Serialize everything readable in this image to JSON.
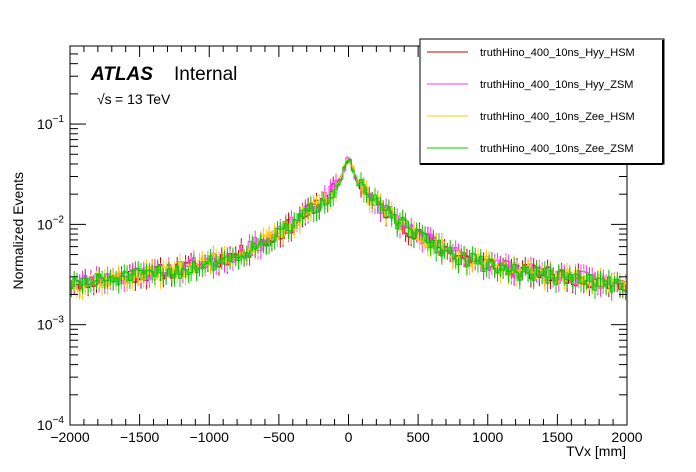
{
  "chart_data": {
    "type": "line",
    "style": "step-histogram-with-error-bars",
    "title": "",
    "experiment_label": "ATLAS",
    "status_label": "Internal",
    "energy_label": "= 13 TeV",
    "energy_sqrt_symbol": "√s",
    "xlabel": "TVx [mm]",
    "ylabel": "Normalized Events",
    "xlim": [
      -2000,
      2000
    ],
    "ylim": [
      0.0001,
      0.6
    ],
    "yscale": "log",
    "x_ticks": [
      -2000,
      -1500,
      -1000,
      -500,
      0,
      500,
      1000,
      1500,
      2000
    ],
    "x_tick_labels": [
      "−2000",
      "−1500",
      "−1000",
      "−500",
      "0",
      "500",
      "1000",
      "1500",
      "2000"
    ],
    "y_ticks": [
      {
        "value": 0.0001,
        "base": "10",
        "exp": "−4"
      },
      {
        "value": 0.001,
        "base": "10",
        "exp": "−3"
      },
      {
        "value": 0.01,
        "base": "10",
        "exp": "−2"
      },
      {
        "value": 0.1,
        "base": "10",
        "exp": "−1"
      }
    ],
    "legend_position": "top-right",
    "x": [
      -2000,
      -1600,
      -1200,
      -800,
      -500,
      -300,
      -150,
      -60,
      0,
      60,
      150,
      300,
      500,
      800,
      1200,
      1600,
      2000
    ],
    "series": [
      {
        "name": "truthHino_400_10ns_Hyy_HSM",
        "color": "#cc0000",
        "seed": 11,
        "values": [
          0.0026,
          0.0031,
          0.0036,
          0.005,
          0.008,
          0.013,
          0.019,
          0.027,
          0.048,
          0.027,
          0.019,
          0.0125,
          0.0078,
          0.0048,
          0.0035,
          0.003,
          0.0025
        ]
      },
      {
        "name": "truthHino_400_10ns_Hyy_ZSM",
        "color": "#ff33ff",
        "seed": 23,
        "values": [
          0.0026,
          0.0031,
          0.0037,
          0.0051,
          0.0081,
          0.0131,
          0.0192,
          0.0272,
          0.0485,
          0.0272,
          0.0192,
          0.0127,
          0.0079,
          0.0049,
          0.0036,
          0.003,
          0.0025
        ]
      },
      {
        "name": "truthHino_400_10ns_Zee_HSM",
        "color": "#ffcc00",
        "seed": 37,
        "values": [
          0.0025,
          0.003,
          0.0036,
          0.005,
          0.008,
          0.013,
          0.019,
          0.027,
          0.048,
          0.027,
          0.019,
          0.0125,
          0.0078,
          0.0048,
          0.0035,
          0.003,
          0.0025
        ]
      },
      {
        "name": "truthHino_400_10ns_Zee_ZSM",
        "color": "#00cc00",
        "seed": 51,
        "values": [
          0.0025,
          0.003,
          0.0035,
          0.0049,
          0.0079,
          0.0128,
          0.0188,
          0.0268,
          0.0475,
          0.0268,
          0.0188,
          0.0124,
          0.0077,
          0.0047,
          0.0034,
          0.0029,
          0.0024
        ]
      }
    ],
    "n_bins": 200,
    "relative_error": 0.18
  }
}
